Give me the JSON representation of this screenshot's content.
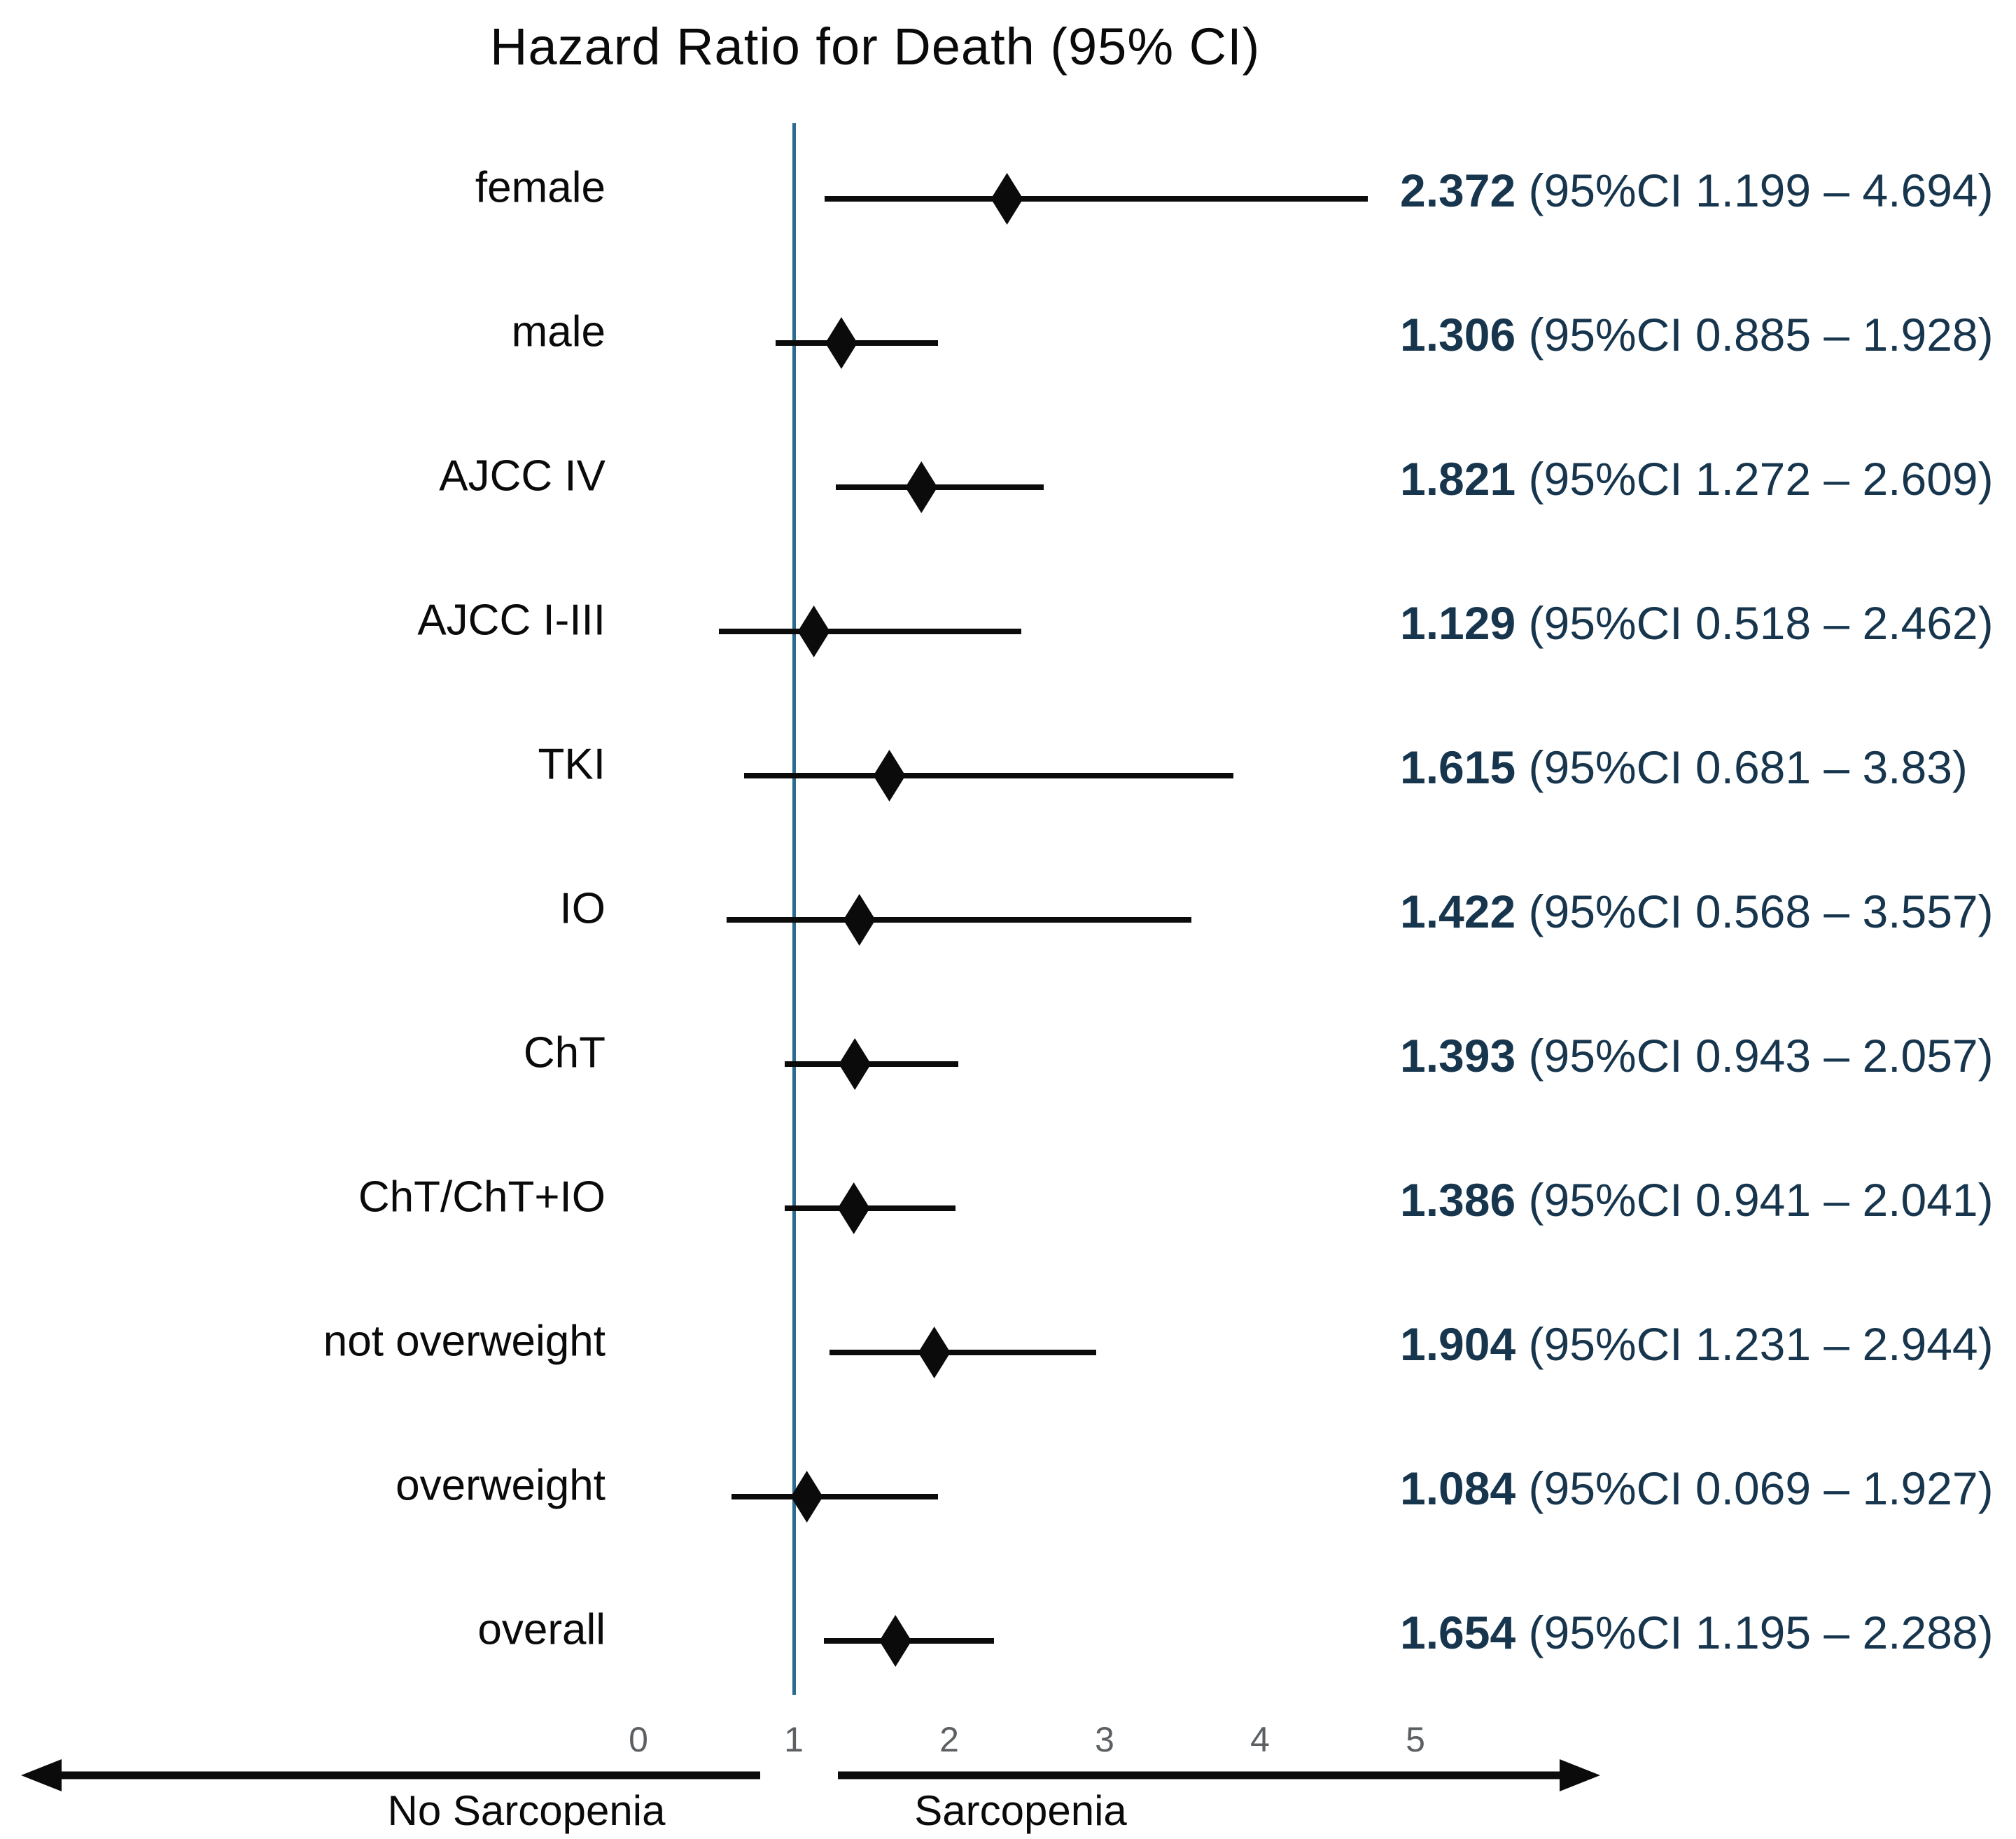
{
  "title": "Hazard Ratio for Death (95% CI)",
  "colors": {
    "ink": "#0b0b0b",
    "value_text": "#17364e",
    "reference_line": "#2a6b8e",
    "tick_label": "#5c6063"
  },
  "axis": {
    "ticks": [
      "0",
      "1",
      "2",
      "3",
      "4",
      "5"
    ],
    "tick_values": [
      0,
      1,
      2,
      3,
      4,
      5
    ],
    "reference_value": 1,
    "left_arrow_label": "No Sarcopenia",
    "right_arrow_label": "Sarcopenia"
  },
  "chart_data": {
    "type": "forest",
    "title": "Hazard Ratio for Death (95% CI)",
    "x_axis": {
      "range": [
        0,
        5
      ],
      "ticks": [
        0,
        1,
        2,
        3,
        4,
        5
      ],
      "reference_line": 1
    },
    "x_direction_labels": {
      "left": "No Sarcopenia",
      "right": "Sarcopenia"
    },
    "rows": [
      {
        "label": "female",
        "hr": 2.372,
        "ci_low": 1.199,
        "ci_high": 4.694,
        "hr_text": "2.372",
        "ci_text": " (95%CI 1.199 – 4.694)"
      },
      {
        "label": "male",
        "hr": 1.306,
        "ci_low": 0.885,
        "ci_high": 1.928,
        "hr_text": "1.306",
        "ci_text": " (95%CI 0.885 – 1.928)"
      },
      {
        "label": "AJCC IV",
        "hr": 1.821,
        "ci_low": 1.272,
        "ci_high": 2.609,
        "hr_text": "1.821",
        "ci_text": " (95%CI 1.272 – 2.609)"
      },
      {
        "label": "AJCC I-III",
        "hr": 1.129,
        "ci_low": 0.518,
        "ci_high": 2.462,
        "hr_text": "1.129",
        "ci_text": " (95%CI 0.518 – 2.462)"
      },
      {
        "label": "TKI",
        "hr": 1.615,
        "ci_low": 0.681,
        "ci_high": 3.83,
        "hr_text": "1.615",
        "ci_text": " (95%CI 0.681 – 3.83)"
      },
      {
        "label": "IO",
        "hr": 1.422,
        "ci_low": 0.568,
        "ci_high": 3.557,
        "hr_text": "1.422",
        "ci_text": " (95%CI 0.568 – 3.557)"
      },
      {
        "label": "ChT",
        "hr": 1.393,
        "ci_low": 0.943,
        "ci_high": 2.057,
        "hr_text": "1.393",
        "ci_text": " (95%CI 0.943 – 2.057)"
      },
      {
        "label": "ChT/ChT+IO",
        "hr": 1.386,
        "ci_low": 0.941,
        "ci_high": 2.041,
        "hr_text": "1.386",
        "ci_text": " (95%CI 0.941 – 2.041)"
      },
      {
        "label": "not overweight",
        "hr": 1.904,
        "ci_low": 1.231,
        "ci_high": 2.944,
        "hr_text": "1.904",
        "ci_text": " (95%CI 1.231 – 2.944)"
      },
      {
        "label": "overweight",
        "hr": 1.084,
        "ci_low": 0.069,
        "ci_high": 1.927,
        "plot_low": 0.6,
        "hr_text": "1.084",
        "ci_text": " (95%CI 0.069 – 1.927)"
      },
      {
        "label": "overall",
        "hr": 1.654,
        "ci_low": 1.195,
        "ci_high": 2.288,
        "hr_text": "1.654",
        "ci_text": " (95%CI 1.195 – 2.288)"
      }
    ]
  }
}
